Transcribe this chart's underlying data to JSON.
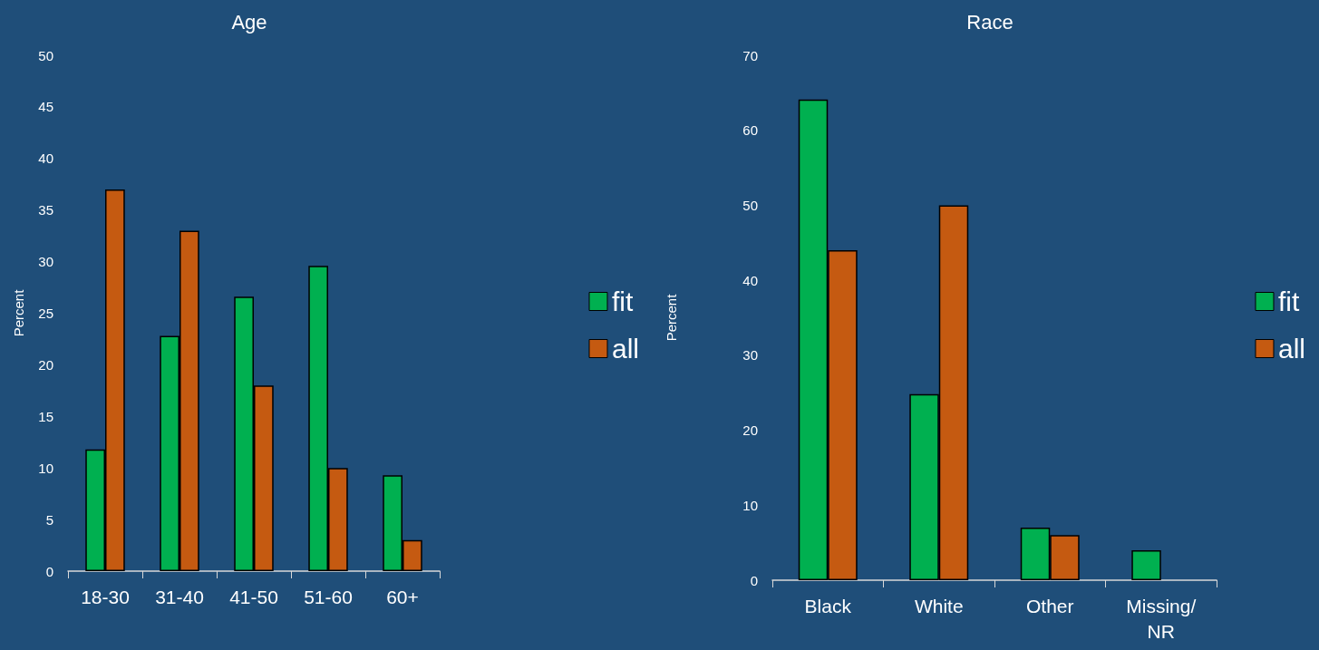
{
  "chart_data": [
    {
      "type": "bar",
      "title": "Age",
      "ylabel": "Percent",
      "categories": [
        "18-30",
        "31-40",
        "41-50",
        "51-60",
        "60+"
      ],
      "series": [
        {
          "name": "fit",
          "color": "#00b050",
          "values": [
            11.8,
            22.8,
            26.6,
            29.6,
            9.3
          ]
        },
        {
          "name": "all",
          "color": "#c55a11",
          "values": [
            37,
            33,
            18,
            10,
            3
          ]
        }
      ],
      "ylim": [
        0,
        50
      ],
      "yticks": [
        0,
        5,
        10,
        15,
        20,
        25,
        30,
        35,
        40,
        45,
        50
      ],
      "grid": false,
      "legend": "right"
    },
    {
      "type": "bar",
      "title": "Race",
      "ylabel": "Percent",
      "categories": [
        "Black",
        "White",
        "Other",
        "Missing/NR"
      ],
      "series": [
        {
          "name": "fit",
          "color": "#00b050",
          "values": [
            64.1,
            24.8,
            7,
            4
          ]
        },
        {
          "name": "all",
          "color": "#c55a11",
          "values": [
            44,
            50,
            6,
            null
          ]
        }
      ],
      "ylim": [
        0,
        70
      ],
      "yticks": [
        0,
        10,
        20,
        30,
        40,
        50,
        60,
        70
      ],
      "grid": false,
      "legend": "right"
    }
  ]
}
